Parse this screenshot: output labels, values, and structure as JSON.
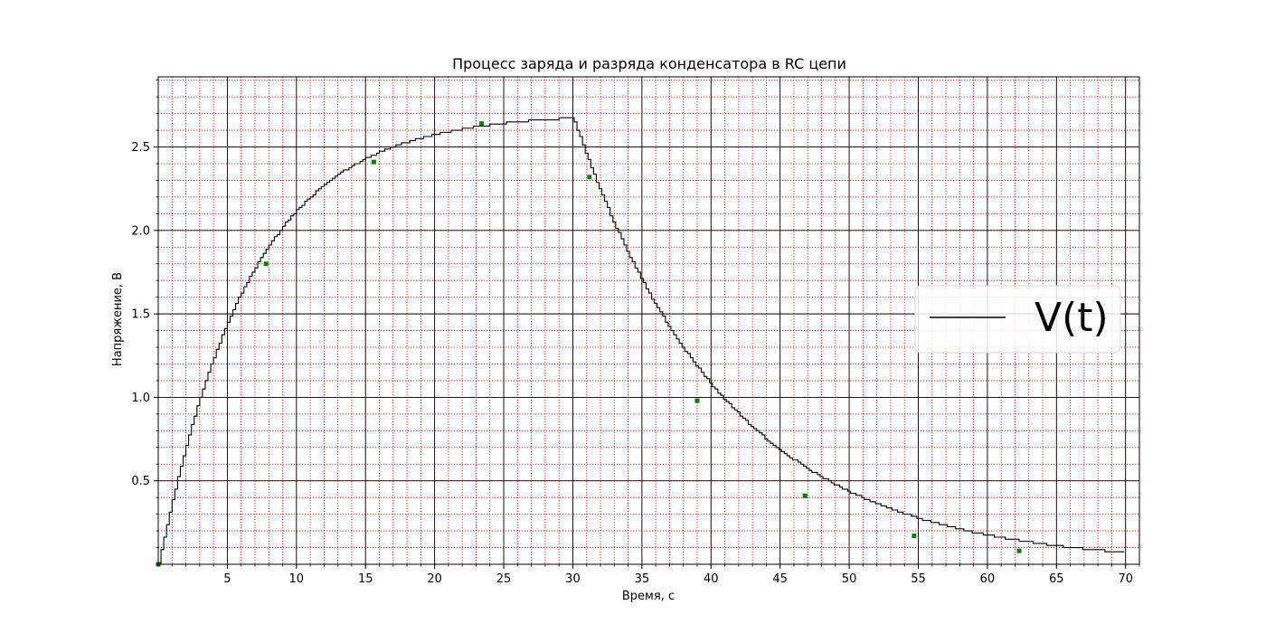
{
  "chart_data": {
    "type": "line",
    "title": "Процесс заряда и разряда конденсатора в RC цепи",
    "xlabel": "Время, с",
    "ylabel": "Напряжение, В",
    "xlim": [
      0,
      71
    ],
    "ylim": [
      0,
      2.92
    ],
    "x_major_ticks": [
      5,
      10,
      15,
      20,
      25,
      30,
      35,
      40,
      45,
      50,
      55,
      60,
      65,
      70
    ],
    "x_tick_labels": [
      "5",
      "10",
      "15",
      "20",
      "25",
      "30",
      "35",
      "40",
      "45",
      "50",
      "55",
      "60",
      "65",
      "70"
    ],
    "y_major_ticks": [
      0.5,
      1.0,
      1.5,
      2.0,
      2.5
    ],
    "y_tick_labels": [
      "0.5",
      "1.0",
      "1.5",
      "2.0",
      "2.5"
    ],
    "x_minor_step": 1,
    "y_minor_step": 0.1,
    "grid": {
      "major": true,
      "minor": true
    },
    "colors": {
      "line": "#000000",
      "major_grid": "#000000",
      "minor_grid": "#e00000",
      "marker": "#0a7a0a"
    },
    "legend": {
      "placement": "center-right",
      "entries": [
        "V(t)"
      ]
    },
    "series": [
      {
        "name": "V(t)",
        "charge": {
          "t_start": 0,
          "t_end": 29.9,
          "v_max": 2.7,
          "tau": 6.5
        },
        "discharge": {
          "t_start": 29.9,
          "t_end": 70,
          "v_start": 2.7,
          "tau": 11.0
        },
        "x": [
          0,
          1,
          2,
          3,
          4,
          5,
          6,
          7,
          7.8,
          9,
          10,
          12,
          14,
          15.6,
          18,
          20,
          22,
          23.4,
          25,
          27,
          28,
          29.9,
          30.5,
          31.2,
          33,
          35,
          37,
          39,
          41,
          43,
          45,
          46.8,
          49,
          52,
          54.7,
          57,
          60,
          62.3,
          65,
          68,
          70
        ],
        "y": [
          0.0,
          0.39,
          0.71,
          0.99,
          1.23,
          1.38,
          1.55,
          1.69,
          1.8,
          1.94,
          2.03,
          2.2,
          2.33,
          2.41,
          2.5,
          2.56,
          2.6,
          2.64,
          2.66,
          2.68,
          2.68,
          2.7,
          2.55,
          2.32,
          1.85,
          1.5,
          1.22,
          0.98,
          0.81,
          0.67,
          0.53,
          0.41,
          0.33,
          0.24,
          0.17,
          0.14,
          0.1,
          0.08,
          0.06,
          0.03,
          0.03
        ]
      }
    ],
    "markers": [
      {
        "x": 0,
        "y": 0.0
      },
      {
        "x": 7.8,
        "y": 1.8
      },
      {
        "x": 15.6,
        "y": 2.41
      },
      {
        "x": 23.4,
        "y": 2.64
      },
      {
        "x": 31.2,
        "y": 2.32
      },
      {
        "x": 39.0,
        "y": 0.98
      },
      {
        "x": 46.8,
        "y": 0.41
      },
      {
        "x": 54.7,
        "y": 0.17
      },
      {
        "x": 62.3,
        "y": 0.08
      }
    ]
  }
}
